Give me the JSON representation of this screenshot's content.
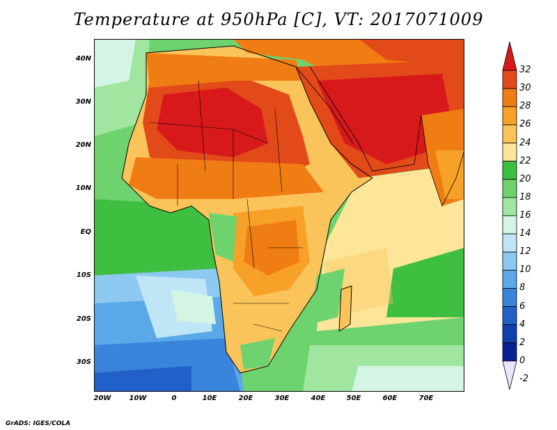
{
  "title": "Temperature at 950hPa [C], VT: 2017071009",
  "credit": "GrADS: IGES/COLA",
  "map": {
    "lat_labels": [
      "40N",
      "30N",
      "20N",
      "10N",
      "EQ",
      "10S",
      "20S",
      "30S"
    ],
    "lon_labels": [
      "20W",
      "10W",
      "0",
      "10E",
      "20E",
      "30E",
      "40E",
      "50E",
      "60E",
      "70E"
    ]
  },
  "colorbar": {
    "levels": [
      "32",
      "30",
      "28",
      "26",
      "24",
      "22",
      "20",
      "18",
      "16",
      "14",
      "12",
      "10",
      "8",
      "6",
      "4",
      "2",
      "0",
      "-2"
    ],
    "colors": [
      "#d7191c",
      "#e34a1a",
      "#f07c14",
      "#f7a128",
      "#fbc45a",
      "#fde69a",
      "#3fbf3f",
      "#6ed36e",
      "#a0e6a0",
      "#d4f5e4",
      "#bfe6f7",
      "#8cc8f0",
      "#5aa8e8",
      "#3a84dc",
      "#2060c8",
      "#1040b0",
      "#0a2090",
      "#e6e6ff"
    ]
  }
}
